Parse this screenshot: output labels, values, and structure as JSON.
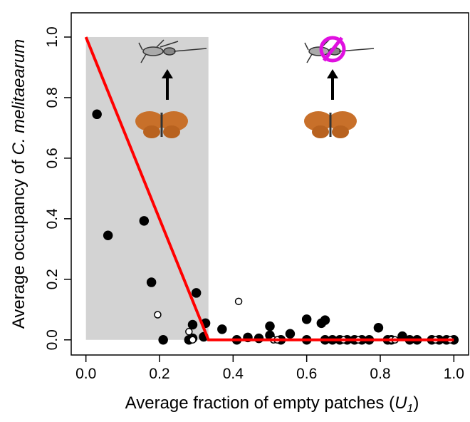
{
  "chart_data": {
    "type": "scatter",
    "ylabel": [
      "Average occupancy of ",
      "C. melitaearum"
    ],
    "xlabel": [
      "Average fraction of empty patches (",
      "U",
      "1",
      ")"
    ],
    "xlim": [
      -0.04,
      1.04
    ],
    "ylim": [
      -0.05,
      1.08
    ],
    "xticks": [
      {
        "value": 0,
        "label": "0.0"
      },
      0.2,
      0.4,
      0.6,
      0.8,
      {
        "value": 1,
        "label": "1.0"
      }
    ],
    "yticks": [
      {
        "value": 0,
        "label": "0.0"
      },
      0.2,
      0.4,
      0.6,
      0.8,
      {
        "value": 1,
        "label": "1.0"
      }
    ],
    "shaded_region": {
      "x": [
        0,
        0.333
      ],
      "y": [
        0,
        1
      ],
      "color": "#d3d3d3"
    },
    "series": [
      {
        "marker": "filled",
        "color": "#000000",
        "x": [
          0.03,
          0.06,
          0.158,
          0.178,
          0.21,
          0.28,
          0.29,
          0.3,
          0.29,
          0.32,
          0.325,
          0.37,
          0.41,
          0.44,
          0.47,
          0.5,
          0.5,
          0.53,
          0.555,
          0.6,
          0.6,
          0.64,
          0.65,
          0.65,
          0.67,
          0.69,
          0.71,
          0.73,
          0.75,
          0.77,
          0.795,
          0.82,
          0.83,
          0.86,
          0.88,
          0.9,
          0.94,
          0.96,
          0.98,
          1.0
        ],
        "values": [
          0.745,
          0.345,
          0.393,
          0.19,
          0.0,
          0.0,
          0.05,
          0.155,
          0.005,
          0.01,
          0.055,
          0.035,
          0.0,
          0.008,
          0.005,
          0.045,
          0.015,
          0.0,
          0.02,
          0.068,
          0.0,
          0.055,
          0.065,
          0.0,
          0.0,
          0.0,
          0.0,
          0.0,
          0.0,
          0.0,
          0.04,
          0.0,
          0.0,
          0.012,
          0.0,
          0.0,
          0.0,
          0.0,
          0.0,
          0.0
        ]
      },
      {
        "marker": "open",
        "color": "#000000",
        "x": [
          0.195,
          0.28,
          0.29,
          0.415,
          0.51,
          0.52,
          0.7,
          0.74,
          0.83,
          0.84,
          0.95,
          0.99
        ],
        "values": [
          0.083,
          0.027,
          0.0,
          0.127,
          0.0,
          0.0,
          0.0,
          0.0,
          0.0,
          0.0,
          0.0,
          0.0
        ]
      },
      {
        "marker": "line",
        "color": "#ff0000",
        "x": [
          0,
          0.333,
          1
        ],
        "values": [
          1,
          0,
          0
        ]
      }
    ]
  }
}
